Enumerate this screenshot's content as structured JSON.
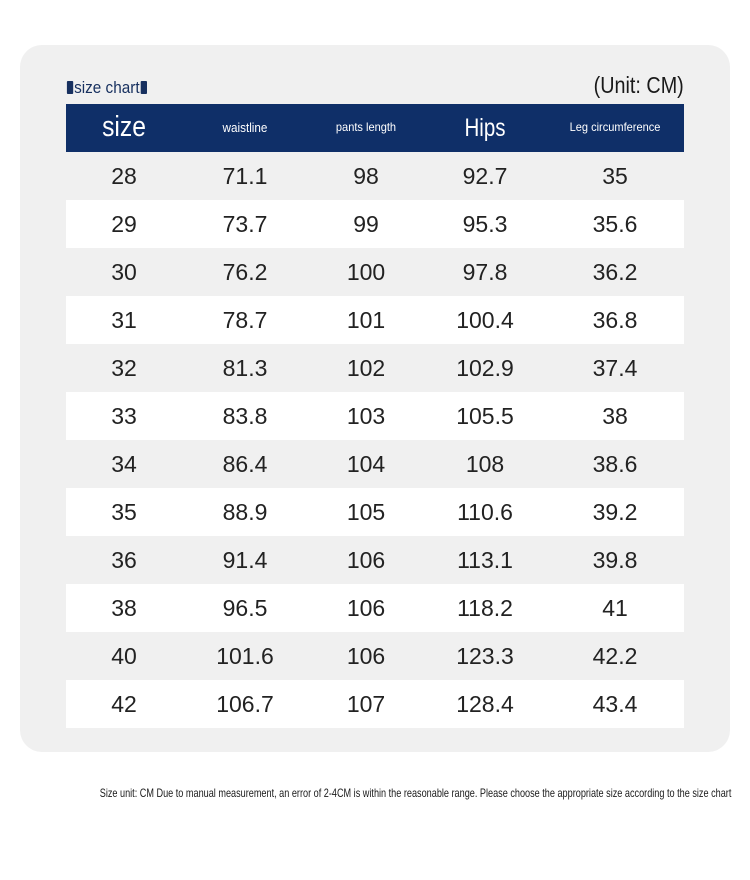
{
  "chart": {
    "title": "size chart",
    "unit": "(Unit: CM)"
  },
  "headers": [
    "size",
    "waistline",
    "pants length",
    "Hips",
    "Leg circumference"
  ],
  "rows": [
    [
      "28",
      "71.1",
      "98",
      "92.7",
      "35"
    ],
    [
      "29",
      "73.7",
      "99",
      "95.3",
      "35.6"
    ],
    [
      "30",
      "76.2",
      "100",
      "97.8",
      "36.2"
    ],
    [
      "31",
      "78.7",
      "101",
      "100.4",
      "36.8"
    ],
    [
      "32",
      "81.3",
      "102",
      "102.9",
      "37.4"
    ],
    [
      "33",
      "83.8",
      "103",
      "105.5",
      "38"
    ],
    [
      "34",
      "86.4",
      "104",
      "108",
      "38.6"
    ],
    [
      "35",
      "88.9",
      "105",
      "110.6",
      "39.2"
    ],
    [
      "36",
      "91.4",
      "106",
      "113.1",
      "39.8"
    ],
    [
      "38",
      "96.5",
      "106",
      "118.2",
      "41"
    ],
    [
      "40",
      "101.6",
      "106",
      "123.3",
      "42.2"
    ],
    [
      "42",
      "106.7",
      "107",
      "128.4",
      "43.4"
    ]
  ],
  "footnote": "Size unit: CM Due to manual measurement, an error of 2-4CM is within the reasonable range. Please choose the appropriate size according to the size chart",
  "colors": {
    "header_bg": "#0f2f68",
    "card_bg": "#f0f0f0"
  }
}
